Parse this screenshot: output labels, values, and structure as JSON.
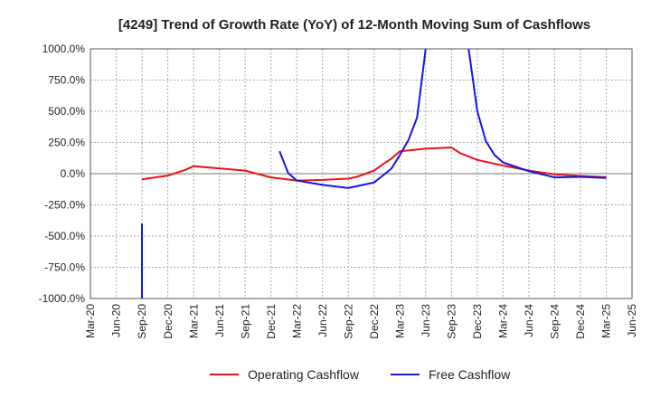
{
  "chart_data": {
    "type": "line",
    "title": "[4249]  Trend of Growth Rate (YoY) of 12-Month Moving Sum of Cashflows",
    "xlabel": "",
    "ylabel": "",
    "ylim": [
      -1000,
      1000
    ],
    "x_ticks": [
      "Mar-20",
      "Jun-20",
      "Sep-20",
      "Dec-20",
      "Mar-21",
      "Jun-21",
      "Sep-21",
      "Dec-21",
      "Mar-22",
      "Jun-22",
      "Sep-22",
      "Dec-22",
      "Mar-23",
      "Jun-23",
      "Sep-23",
      "Dec-23",
      "Mar-24",
      "Jun-24",
      "Sep-24",
      "Dec-24",
      "Mar-25",
      "Jun-25"
    ],
    "y_ticks": [
      "1000.0%",
      "750.0%",
      "500.0%",
      "250.0%",
      "0.0%",
      "-250.0%",
      "-500.0%",
      "-750.0%",
      "-1000.0%"
    ],
    "y_tick_values": [
      1000,
      750,
      500,
      250,
      0,
      -250,
      -500,
      -750,
      -1000
    ],
    "grid": true,
    "legend_position": "bottom",
    "series": [
      {
        "name": "Operating Cashflow",
        "color": "#e8141b",
        "points": [
          [
            "Sep-20",
            -45
          ],
          [
            "Dec-20",
            -15
          ],
          [
            "Feb-21",
            30
          ],
          [
            "Mar-21",
            60
          ],
          [
            "Sep-21",
            25
          ],
          [
            "Dec-21",
            -30
          ],
          [
            "Mar-22",
            -55
          ],
          [
            "Jun-22",
            -50
          ],
          [
            "Sep-22",
            -40
          ],
          [
            "Oct-22",
            -25
          ],
          [
            "Dec-22",
            25
          ],
          [
            "Jan-23",
            75
          ],
          [
            "Feb-23",
            120
          ],
          [
            "Mar-23",
            180
          ],
          [
            "Jun-23",
            200
          ],
          [
            "Sep-23",
            210
          ],
          [
            "Oct-23",
            165
          ],
          [
            "Dec-23",
            110
          ],
          [
            "Feb-24",
            80
          ],
          [
            "Mar-24",
            65
          ],
          [
            "Jun-24",
            25
          ],
          [
            "Sep-24",
            -5
          ],
          [
            "Dec-24",
            -18
          ],
          [
            "Mar-25",
            -28
          ]
        ]
      },
      {
        "name": "Free Cashflow",
        "color": "#1414e6",
        "segments": [
          [
            [
              "Sep-20",
              -400
            ],
            [
              "Sep-20",
              -1000
            ]
          ],
          [
            [
              "Jan-22",
              180
            ],
            [
              "Feb-22",
              5
            ],
            [
              "Mar-22",
              -55
            ],
            [
              "Jun-22",
              -90
            ],
            [
              "Sep-22",
              -115
            ],
            [
              "Dec-22",
              -70
            ],
            [
              "Jan-23",
              -15
            ],
            [
              "Feb-23",
              40
            ],
            [
              "Mar-23",
              150
            ],
            [
              "Apr-23",
              270
            ],
            [
              "May-23",
              450
            ],
            [
              "Jun-23",
              1000
            ]
          ],
          [
            [
              "Nov-23",
              1000
            ],
            [
              "Dec-23",
              500
            ],
            [
              "Jan-24",
              260
            ],
            [
              "Feb-24",
              150
            ],
            [
              "Mar-24",
              90
            ],
            [
              "Jun-24",
              20
            ],
            [
              "Sep-24",
              -30
            ],
            [
              "Dec-24",
              -25
            ],
            [
              "Mar-25",
              -35
            ]
          ]
        ]
      }
    ]
  }
}
